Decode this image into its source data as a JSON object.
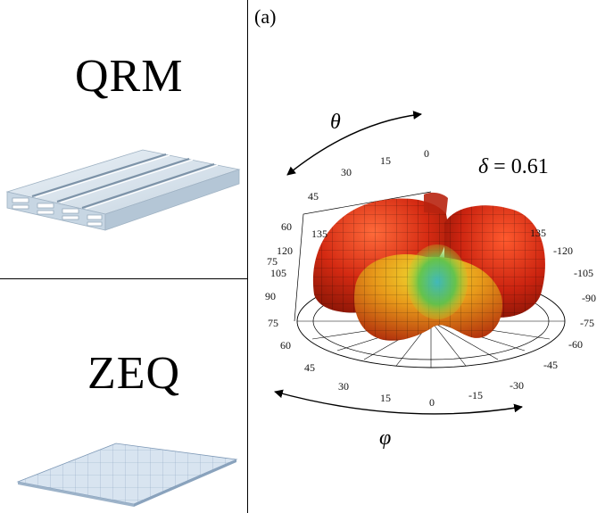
{
  "left_panel": {
    "top_label": "QRM",
    "bottom_label": "ZEQ"
  },
  "right_panel": {
    "panel_tag": "(a)",
    "theta_symbol": "θ",
    "phi_symbol": "φ",
    "delta": {
      "symbol": "δ",
      "equals": " = ",
      "value": "0.61"
    },
    "outer_ticks": [
      "0",
      "15",
      "30",
      "45",
      "60",
      "75",
      "90",
      "75",
      "60",
      "45",
      "30",
      "15",
      "0",
      "-15",
      "-30",
      "-45",
      "-60",
      "-75",
      "-90",
      "-105",
      "-120"
    ],
    "inner_ticks": [
      "105",
      "120",
      "135",
      "135"
    ],
    "colors": {
      "lobe_red": "#d42a12",
      "lobe_yellow": "#e8d21e",
      "lobe_green": "#3fb04a",
      "lobe_cyan": "#2fb6c9"
    }
  }
}
